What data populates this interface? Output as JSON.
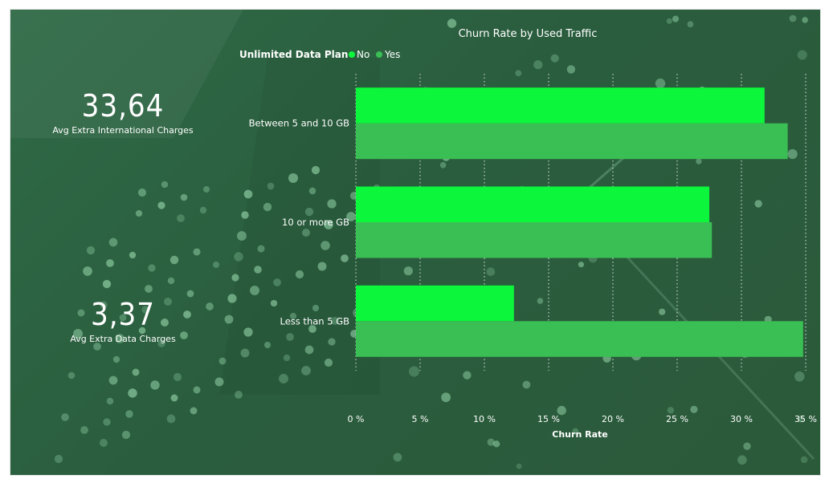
{
  "kpis": [
    {
      "value": "33,64",
      "label": "Avg Extra International Charges"
    },
    {
      "value": "3,37",
      "label": "Avg Extra Data Charges"
    }
  ],
  "colors": {
    "no": "#0cf73c",
    "yes": "#3abf54",
    "background": "#2c6141"
  },
  "chart_data": {
    "type": "bar",
    "orientation": "horizontal",
    "title": "Churn Rate by Used Traffic",
    "legend": {
      "title": "Unlimited Data Plan",
      "position": "top-left"
    },
    "categories": [
      "Between 5 and 10 GB",
      "10 or more GB",
      "Less than 5 GB"
    ],
    "series": [
      {
        "name": "No",
        "color": "#0cf73c",
        "values": [
          31.8,
          27.5,
          12.3
        ]
      },
      {
        "name": "Yes",
        "color": "#3abf54",
        "values": [
          33.6,
          27.7,
          34.8
        ]
      }
    ],
    "xlabel": "Churn Rate",
    "ylabel": "",
    "xlim": [
      0,
      35
    ],
    "xticks": [
      "0 %",
      "5 %",
      "10 %",
      "15 %",
      "20 %",
      "25 %",
      "30 %",
      "35 %"
    ],
    "grid": true
  }
}
